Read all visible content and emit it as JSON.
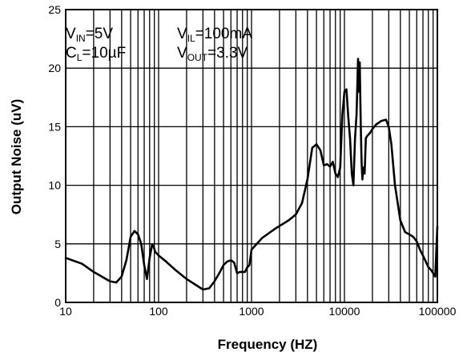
{
  "chart_data": {
    "type": "line",
    "xlabel": "Frequency (HZ)",
    "ylabel": "Output Noise (uV)",
    "xscale": "log",
    "xlim": [
      10,
      100000
    ],
    "ylim": [
      0,
      25
    ],
    "grid": true,
    "x_ticks": [
      10,
      100,
      1000,
      10000,
      100000
    ],
    "x_tick_labels": [
      "10",
      "100",
      "1000",
      "10000",
      "100000"
    ],
    "y_ticks": [
      0,
      5,
      10,
      15,
      20,
      25
    ],
    "y_tick_labels": [
      "0",
      "5",
      "10",
      "15",
      "20",
      "25"
    ],
    "conditions": {
      "vin": {
        "main": "V",
        "sub": "IN",
        "rest": "=5V"
      },
      "cl": {
        "main": "C",
        "sub": "L",
        "rest": "=10µF"
      },
      "vil": {
        "main": "V",
        "sub": "IL",
        "rest": "=100mA"
      },
      "vout": {
        "main": "V",
        "sub": "OUT",
        "rest": "=3.3V"
      }
    },
    "series": [
      {
        "color": "#000000",
        "x": [
          10,
          15,
          20,
          30,
          35,
          40,
          45,
          50,
          55,
          60,
          65,
          70,
          75,
          80,
          85,
          88,
          92,
          95,
          100,
          120,
          150,
          200,
          250,
          300,
          350,
          400,
          450,
          500,
          550,
          600,
          650,
          700,
          750,
          800,
          850,
          900,
          950,
          1000,
          1300,
          1800,
          2500,
          3000,
          3500,
          4000,
          4500,
          5000,
          5500,
          6000,
          6500,
          7000,
          7500,
          8000,
          8500,
          9000,
          9500,
          10000,
          10500,
          11000,
          11500,
          12000,
          12500,
          13000,
          13500,
          14000,
          14300,
          14600,
          15000,
          15300,
          15600,
          16000,
          16500,
          17000,
          17500,
          18000,
          19000,
          20000,
          22000,
          25000,
          28000,
          30000,
          32000,
          35000,
          40000,
          45000,
          50000,
          55000,
          60000,
          65000,
          70000,
          75000,
          80000,
          85000,
          90000,
          95000,
          100000
        ],
        "y": [
          3.8,
          3.3,
          2.6,
          1.8,
          1.7,
          2.2,
          3.6,
          5.6,
          6.1,
          5.8,
          5.0,
          3.2,
          2.0,
          3.8,
          4.9,
          4.8,
          4.3,
          4.2,
          4.0,
          3.5,
          2.8,
          2.0,
          1.5,
          1.1,
          1.2,
          1.8,
          2.5,
          3.2,
          3.5,
          3.6,
          3.4,
          2.5,
          2.6,
          2.6,
          2.6,
          3.0,
          3.2,
          4.5,
          5.5,
          6.3,
          7.0,
          7.5,
          8.5,
          10.5,
          13.2,
          13.5,
          13.0,
          11.7,
          11.8,
          11.6,
          12.0,
          11.0,
          10.7,
          11.5,
          16.0,
          18.0,
          18.2,
          15.8,
          14.0,
          11.0,
          10.0,
          14.0,
          16.0,
          20.8,
          18.0,
          20.5,
          15.0,
          12.0,
          10.5,
          11.5,
          11.0,
          14.0,
          14.2,
          14.3,
          14.5,
          14.8,
          15.2,
          15.5,
          15.6,
          15.0,
          13.5,
          10.0,
          7.0,
          6.0,
          5.8,
          5.6,
          5.2,
          4.5,
          4.0,
          3.5,
          3.0,
          2.8,
          2.5,
          2.2,
          6.5
        ]
      }
    ]
  }
}
